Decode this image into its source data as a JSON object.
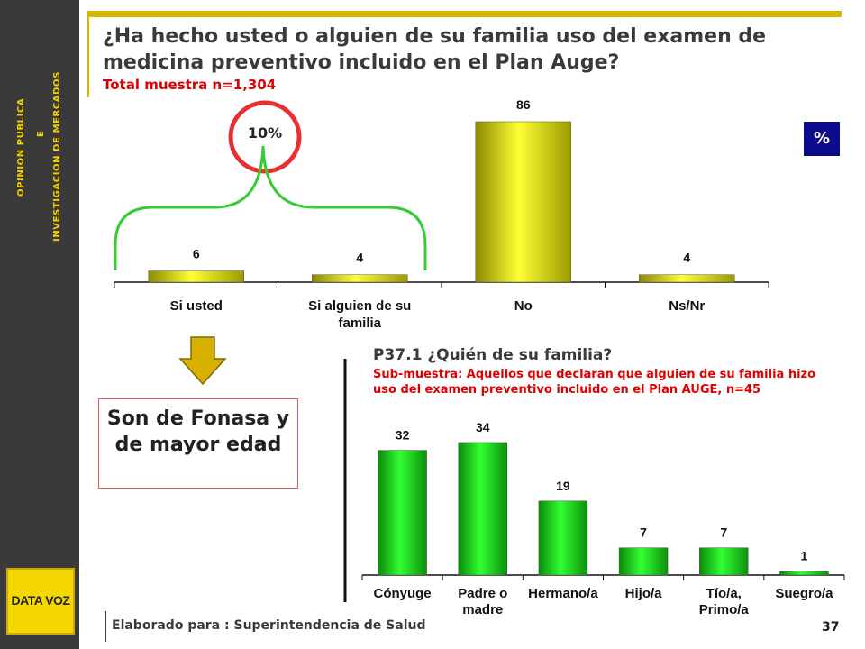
{
  "sidebar": {
    "line1": "OPINION PUBLICA",
    "line2": "E",
    "line3": "INVESTIGACION DE MERCADOS",
    "logo": "DATA VOZ"
  },
  "title": "¿Ha hecho usted o alguien de su familia uso del examen de medicina preventivo incluido en el Plan Auge?",
  "subtitle": "Total muestra n=1,304",
  "unit_badge": "%",
  "circle_label": "10%",
  "callout": "Son de Fonasa y de mayor edad",
  "sub_chart": {
    "title": "P37.1 ¿Quién de su familia?",
    "description": "Sub-muestra: Aquellos que declaran que alguien de su familia hizo uso del examen preventivo incluido en el Plan AUGE, n=45"
  },
  "footer": {
    "text": "Elaborado para : Superintendencia de Salud",
    "page": "37"
  },
  "colors": {
    "chart1_bar": "#d9d900",
    "chart2_bar": "#14c814",
    "circle": "#e83030",
    "bracket": "#33cc33",
    "arrow": "#d8b000",
    "badge": "#0b0b8c"
  },
  "chart_data": [
    {
      "type": "bar",
      "categories": [
        "Si usted",
        "Si alguien de su familia",
        "No",
        "Ns/Nr"
      ],
      "values": [
        6,
        4,
        86,
        4
      ],
      "title": "",
      "xlabel": "",
      "ylabel": "",
      "ylim": [
        0,
        100
      ]
    },
    {
      "type": "bar",
      "categories": [
        "Cónyuge",
        "Padre o madre",
        "Hermano/a",
        "Hijo/a",
        "Tío/a, Primo/a",
        "Suegro/a"
      ],
      "values": [
        32,
        34,
        19,
        7,
        7,
        1
      ],
      "title": "",
      "xlabel": "",
      "ylabel": "",
      "ylim": [
        0,
        40
      ]
    }
  ]
}
